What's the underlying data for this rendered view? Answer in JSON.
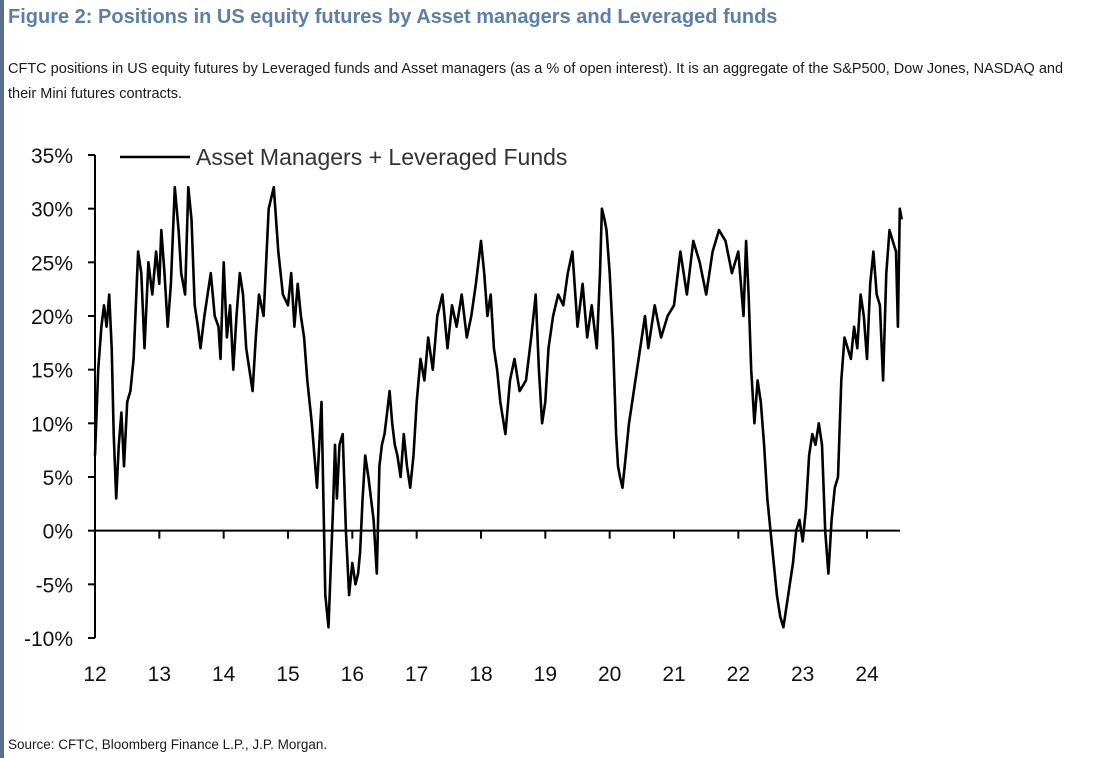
{
  "figure": {
    "title": "Figure 2: Positions in US equity futures by Asset managers and Leveraged funds",
    "subtitle": "CFTC positions in US equity futures by Leveraged funds and Asset managers (as a % of open interest). It is an aggregate of the S&P500, Dow Jones, NASDAQ and their Mini futures contracts.",
    "source": "Source: CFTC, Bloomberg Finance L.P., J.P. Morgan."
  },
  "chart_data": {
    "type": "line",
    "title": "",
    "xlabel": "",
    "ylabel": "",
    "ylim": [
      -10,
      35
    ],
    "xlim": [
      2012.0,
      2024.6
    ],
    "yticks": [
      35,
      30,
      25,
      20,
      15,
      10,
      5,
      0,
      -5,
      -10
    ],
    "ytick_labels": [
      "35%",
      "30%",
      "25%",
      "20%",
      "15%",
      "10%",
      "5%",
      "0%",
      "-5%",
      "-10%"
    ],
    "xticks": [
      2012,
      2013,
      2014,
      2015,
      2016,
      2017,
      2018,
      2019,
      2020,
      2021,
      2022,
      2023,
      2024
    ],
    "xtick_labels": [
      "12",
      "13",
      "14",
      "15",
      "16",
      "17",
      "18",
      "19",
      "20",
      "21",
      "22",
      "23",
      "24"
    ],
    "grid": false,
    "zero_line": true,
    "legend": {
      "position": "top-left",
      "entries": [
        "Asset Managers + Leveraged Funds"
      ]
    },
    "colors": {
      "series": "#000000",
      "title": "#5b7fa8",
      "axis": "#000000"
    },
    "series": [
      {
        "name": "Asset Managers + Leveraged Funds",
        "x": [
          2012.0,
          2012.05,
          2012.1,
          2012.14,
          2012.18,
          2012.22,
          2012.26,
          2012.29,
          2012.33,
          2012.37,
          2012.41,
          2012.45,
          2012.5,
          2012.55,
          2012.6,
          2012.67,
          2012.72,
          2012.77,
          2012.83,
          2012.89,
          2012.95,
          2013.0,
          2013.03,
          2013.08,
          2013.13,
          2013.18,
          2013.24,
          2013.3,
          2013.34,
          2013.4,
          2013.45,
          2013.5,
          2013.55,
          2013.6,
          2013.64,
          2013.7,
          2013.75,
          2013.8,
          2013.86,
          2013.92,
          2013.95,
          2014.0,
          2014.05,
          2014.1,
          2014.15,
          2014.2,
          2014.25,
          2014.3,
          2014.35,
          2014.4,
          2014.45,
          2014.5,
          2014.55,
          2014.62,
          2014.7,
          2014.78,
          2014.85,
          2014.92,
          2015.0,
          2015.05,
          2015.1,
          2015.15,
          2015.2,
          2015.25,
          2015.3,
          2015.37,
          2015.45,
          2015.52,
          2015.58,
          2015.63,
          2015.66,
          2015.7,
          2015.73,
          2015.76,
          2015.8,
          2015.85,
          2015.9,
          2015.95,
          2016.0,
          2016.05,
          2016.09,
          2016.12,
          2016.16,
          2016.2,
          2016.25,
          2016.29,
          2016.33,
          2016.38,
          2016.42,
          2016.46,
          2016.5,
          2016.54,
          2016.58,
          2016.62,
          2016.66,
          2016.7,
          2016.75,
          2016.8,
          2016.85,
          2016.9,
          2016.95,
          2017.0,
          2017.06,
          2017.12,
          2017.18,
          2017.25,
          2017.32,
          2017.4,
          2017.48,
          2017.55,
          2017.62,
          2017.7,
          2017.78,
          2017.85,
          2017.92,
          2018.0,
          2018.05,
          2018.1,
          2018.15,
          2018.2,
          2018.25,
          2018.3,
          2018.38,
          2018.45,
          2018.52,
          2018.6,
          2018.7,
          2018.78,
          2018.85,
          2018.9,
          2018.95,
          2019.0,
          2019.05,
          2019.12,
          2019.2,
          2019.28,
          2019.35,
          2019.42,
          2019.5,
          2019.58,
          2019.65,
          2019.72,
          2019.8,
          2019.85,
          2019.88,
          2019.92,
          2019.95,
          2020.0,
          2020.05,
          2020.1,
          2020.13,
          2020.16,
          2020.2,
          2020.25,
          2020.3,
          2020.35,
          2020.4,
          2020.45,
          2020.5,
          2020.55,
          2020.6,
          2020.7,
          2020.8,
          2020.9,
          2021.0,
          2021.1,
          2021.2,
          2021.3,
          2021.4,
          2021.5,
          2021.6,
          2021.7,
          2021.8,
          2021.9,
          2022.0,
          2022.08,
          2022.12,
          2022.16,
          2022.2,
          2022.25,
          2022.3,
          2022.35,
          2022.4,
          2022.45,
          2022.5,
          2022.55,
          2022.6,
          2022.65,
          2022.7,
          2022.75,
          2022.8,
          2022.85,
          2022.9,
          2022.95,
          2023.0,
          2023.05,
          2023.1,
          2023.15,
          2023.2,
          2023.25,
          2023.3,
          2023.35,
          2023.4,
          2023.45,
          2023.5,
          2023.55,
          2023.6,
          2023.65,
          2023.7,
          2023.75,
          2023.8,
          2023.85,
          2023.9,
          2023.95,
          2024.0,
          2024.05,
          2024.1,
          2024.15,
          2024.2,
          2024.25,
          2024.3,
          2024.35,
          2024.4,
          2024.45,
          2024.48,
          2024.51,
          2024.54
        ],
        "y": [
          7,
          15,
          19,
          21,
          19,
          22,
          17,
          9,
          3,
          8,
          11,
          6,
          12,
          13,
          16,
          26,
          24,
          17,
          25,
          22,
          26,
          23,
          28,
          24,
          19,
          23,
          32,
          28,
          24,
          22,
          32,
          29,
          21,
          19,
          17,
          20,
          22,
          24,
          20,
          19,
          16,
          25,
          18,
          21,
          15,
          20,
          24,
          22,
          17,
          15,
          13,
          18,
          22,
          20,
          30,
          32,
          26,
          22,
          21,
          24,
          19,
          23,
          20,
          18,
          14,
          10,
          4,
          12,
          -6,
          -9,
          -4,
          2,
          8,
          3,
          8,
          9,
          0,
          -6,
          -3,
          -5,
          -4,
          -2,
          3,
          7,
          5,
          3,
          1,
          -4,
          6,
          8,
          9,
          11,
          13,
          10,
          8,
          7,
          5,
          9,
          6,
          4,
          7,
          12,
          16,
          14,
          18,
          15,
          20,
          22,
          17,
          21,
          19,
          22,
          18,
          20,
          23,
          27,
          24,
          20,
          22,
          17,
          15,
          12,
          9,
          14,
          16,
          13,
          14,
          18,
          22,
          15,
          10,
          12,
          17,
          20,
          22,
          21,
          24,
          26,
          19,
          23,
          18,
          21,
          17,
          24,
          30,
          29,
          28,
          24,
          18,
          9,
          6,
          5,
          4,
          7,
          10,
          12,
          14,
          16,
          18,
          20,
          17,
          21,
          18,
          20,
          21,
          26,
          22,
          27,
          25,
          22,
          26,
          28,
          27,
          24,
          26,
          20,
          27,
          22,
          15,
          10,
          14,
          12,
          8,
          3,
          0,
          -3,
          -6,
          -8,
          -9,
          -7,
          -5,
          -3,
          0,
          1,
          -1,
          2,
          7,
          9,
          8,
          10,
          8,
          0,
          -4,
          1,
          4,
          5,
          14,
          18,
          17,
          16,
          19,
          17,
          22,
          20,
          16,
          23,
          26,
          22,
          21,
          14,
          24,
          28,
          27,
          26,
          19,
          30,
          29
        ]
      }
    ]
  }
}
